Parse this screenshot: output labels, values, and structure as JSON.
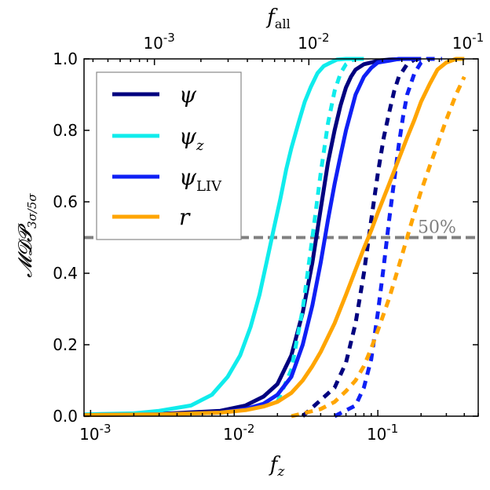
{
  "chart_data": {
    "type": "line",
    "xlabel": "f",
    "xlabel_sub": "z",
    "top_xlabel": "f",
    "top_xlabel_sub": "all",
    "ylabel": "𝓜𝓓𝓟",
    "ylabel_sub": "3σ/5σ",
    "xscale": "log",
    "xlim": [
      0.0009,
      0.5
    ],
    "ylim": [
      0.0,
      1.0
    ],
    "top_xlim": [
      0.00035,
      0.125
    ],
    "x_ticks": [
      {
        "value": 0.001,
        "base": "10",
        "exp": "-3"
      },
      {
        "value": 0.01,
        "base": "10",
        "exp": "-2"
      },
      {
        "value": 0.1,
        "base": "10",
        "exp": "-1"
      }
    ],
    "top_x_ticks": [
      {
        "value": 0.001,
        "base": "10",
        "exp": "-3"
      },
      {
        "value": 0.01,
        "base": "10",
        "exp": "-2"
      },
      {
        "value": 0.1,
        "base": "10",
        "exp": "-1"
      }
    ],
    "y_ticks": [
      "0.0",
      "0.2",
      "0.4",
      "0.6",
      "0.8",
      "1.0"
    ],
    "reference_line": {
      "y": 0.5,
      "label": "50%",
      "color": "#808080"
    },
    "legend": [
      {
        "symbol": "ψ",
        "sub": "",
        "color": "#00007f"
      },
      {
        "symbol": "ψ",
        "sub": "z",
        "color": "#10ecec"
      },
      {
        "symbol": "ψ",
        "sub": "LIV",
        "color": "#0f20f5"
      },
      {
        "symbol": "r",
        "sub": "",
        "color": "#ffa500"
      }
    ],
    "series": [
      {
        "name": "psi 3σ",
        "color": "#00007f",
        "style": "solid",
        "x": [
          0.0009,
          0.003,
          0.008,
          0.012,
          0.016,
          0.02,
          0.025,
          0.03,
          0.035,
          0.04,
          0.045,
          0.05,
          0.055,
          0.06,
          0.065,
          0.07,
          0.08,
          0.09,
          0.1,
          0.12,
          0.15,
          0.2
        ],
        "y": [
          0.004,
          0.006,
          0.015,
          0.03,
          0.055,
          0.09,
          0.17,
          0.29,
          0.43,
          0.58,
          0.71,
          0.8,
          0.87,
          0.92,
          0.95,
          0.97,
          0.985,
          0.99,
          0.995,
          0.998,
          1.0,
          1.0
        ]
      },
      {
        "name": "psi 5σ",
        "color": "#00007f",
        "style": "dashed",
        "x": [
          0.03,
          0.05,
          0.06,
          0.07,
          0.08,
          0.09,
          0.1,
          0.11,
          0.12,
          0.13,
          0.14,
          0.16,
          0.18,
          0.2
        ],
        "y": [
          0.0,
          0.08,
          0.15,
          0.26,
          0.4,
          0.55,
          0.68,
          0.78,
          0.85,
          0.91,
          0.95,
          0.985,
          0.998,
          1.0
        ]
      },
      {
        "name": "psi_z 3σ",
        "color": "#10ecec",
        "style": "solid",
        "x": [
          0.0009,
          0.002,
          0.003,
          0.005,
          0.007,
          0.009,
          0.011,
          0.013,
          0.015,
          0.017,
          0.019,
          0.021,
          0.023,
          0.025,
          0.028,
          0.031,
          0.034,
          0.038,
          0.042,
          0.047,
          0.052,
          0.06,
          0.07,
          0.08
        ],
        "y": [
          0.005,
          0.008,
          0.015,
          0.03,
          0.06,
          0.11,
          0.17,
          0.25,
          0.34,
          0.44,
          0.53,
          0.61,
          0.69,
          0.75,
          0.82,
          0.88,
          0.92,
          0.96,
          0.98,
          0.99,
          0.998,
          1.0,
          1.0,
          1.0
        ]
      },
      {
        "name": "psi_z 5σ",
        "color": "#10ecec",
        "style": "dashed",
        "x": [
          0.02,
          0.025,
          0.03,
          0.035,
          0.04,
          0.045,
          0.05,
          0.055,
          0.06,
          0.065,
          0.07,
          0.08
        ],
        "y": [
          0.04,
          0.13,
          0.3,
          0.5,
          0.68,
          0.82,
          0.91,
          0.96,
          0.985,
          0.995,
          1.0,
          1.0
        ]
      },
      {
        "name": "psi_LIV 3σ",
        "color": "#0f20f5",
        "style": "solid",
        "x": [
          0.0009,
          0.003,
          0.008,
          0.012,
          0.016,
          0.02,
          0.025,
          0.03,
          0.035,
          0.04,
          0.045,
          0.05,
          0.055,
          0.06,
          0.07,
          0.08,
          0.09,
          0.1,
          0.12,
          0.14,
          0.17,
          0.2
        ],
        "y": [
          0.003,
          0.005,
          0.01,
          0.02,
          0.035,
          0.06,
          0.11,
          0.2,
          0.31,
          0.43,
          0.55,
          0.65,
          0.73,
          0.8,
          0.9,
          0.95,
          0.975,
          0.99,
          0.995,
          1.0,
          1.0,
          1.0
        ]
      },
      {
        "name": "psi_LIV 5σ",
        "color": "#0f20f5",
        "style": "dashed",
        "x": [
          0.05,
          0.07,
          0.08,
          0.09,
          0.1,
          0.11,
          0.12,
          0.13,
          0.14,
          0.15,
          0.16,
          0.18,
          0.2,
          0.22,
          0.25,
          0.28
        ],
        "y": [
          0.0,
          0.03,
          0.08,
          0.16,
          0.29,
          0.42,
          0.55,
          0.66,
          0.76,
          0.84,
          0.9,
          0.96,
          0.99,
          1.0,
          1.0,
          1.0
        ]
      },
      {
        "name": "r 3σ",
        "color": "#ffa500",
        "style": "solid",
        "x": [
          0.0009,
          0.003,
          0.008,
          0.012,
          0.016,
          0.02,
          0.025,
          0.03,
          0.035,
          0.04,
          0.05,
          0.06,
          0.07,
          0.08,
          0.09,
          0.1,
          0.12,
          0.14,
          0.16,
          0.18,
          0.2,
          0.23,
          0.26,
          0.3,
          0.35,
          0.4
        ],
        "y": [
          0.003,
          0.005,
          0.01,
          0.017,
          0.027,
          0.04,
          0.065,
          0.1,
          0.14,
          0.18,
          0.26,
          0.34,
          0.41,
          0.47,
          0.52,
          0.57,
          0.65,
          0.72,
          0.78,
          0.83,
          0.88,
          0.93,
          0.97,
          0.99,
          1.0,
          1.0
        ]
      },
      {
        "name": "r 5σ",
        "color": "#ffa500",
        "style": "dashed",
        "x": [
          0.025,
          0.04,
          0.05,
          0.06,
          0.07,
          0.08,
          0.09,
          0.1,
          0.12,
          0.14,
          0.16,
          0.18,
          0.2,
          0.23,
          0.26,
          0.3,
          0.35,
          0.4
        ],
        "y": [
          0.0,
          0.02,
          0.04,
          0.07,
          0.1,
          0.14,
          0.19,
          0.24,
          0.33,
          0.42,
          0.5,
          0.57,
          0.63,
          0.7,
          0.76,
          0.83,
          0.9,
          0.95
        ]
      }
    ]
  }
}
